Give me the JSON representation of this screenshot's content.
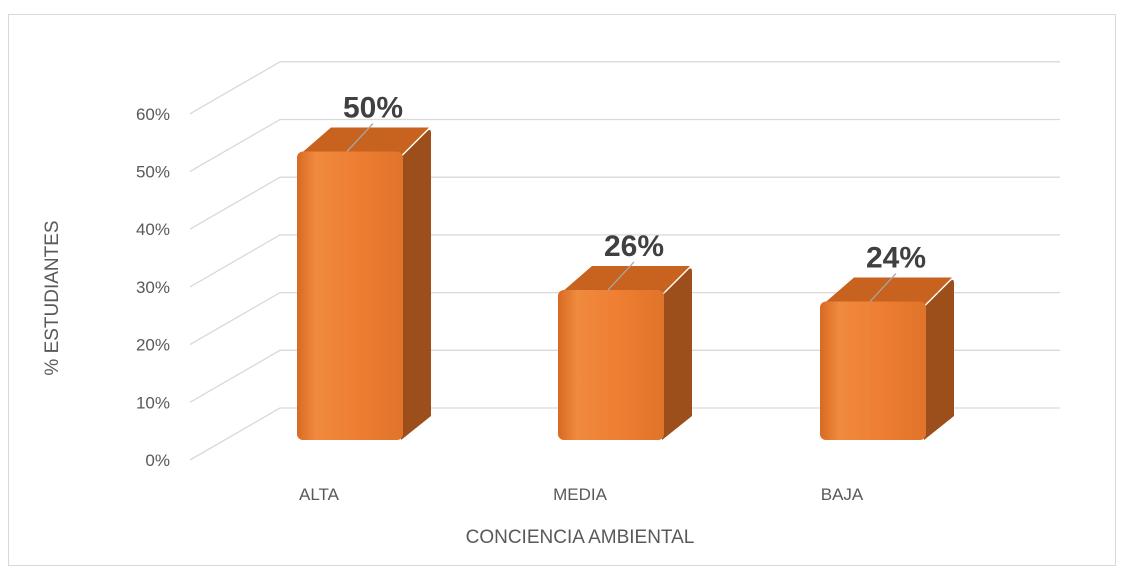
{
  "chart_data": {
    "type": "bar",
    "categories": [
      "ALTA",
      "MEDIA",
      "BAJA"
    ],
    "values": [
      50,
      26,
      24
    ],
    "data_labels": [
      "50%",
      "26%",
      "24%"
    ],
    "xlabel": "CONCIENCIA AMBIENTAL",
    "ylabel": "% ESTUDIANTES",
    "ylim": [
      0,
      60
    ],
    "y_ticks": [
      "0%",
      "10%",
      "20%",
      "30%",
      "40%",
      "50%",
      "60%"
    ],
    "grid": true,
    "three_d": true,
    "colors": {
      "bar_front": "#ed7d31",
      "bar_side": "#9c4f1a",
      "grid": "#d9d9d9",
      "text": "#595959",
      "label": "#404040"
    }
  }
}
